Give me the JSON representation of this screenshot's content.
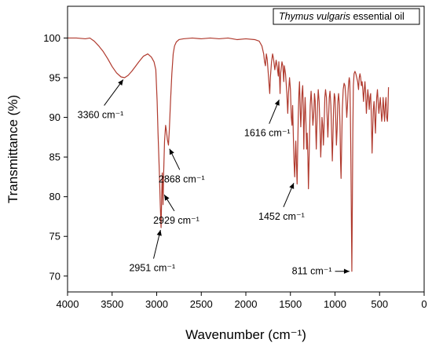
{
  "chart_data": {
    "type": "line",
    "xlabel": "Wavenumber (cm⁻¹)",
    "ylabel": "Transmittance (%)",
    "xlim": [
      4000,
      0
    ],
    "ylim": [
      68,
      104
    ],
    "xticks": [
      4000,
      3500,
      3000,
      2500,
      2000,
      1500,
      1000,
      500,
      0
    ],
    "yticks": [
      70,
      75,
      80,
      85,
      90,
      95,
      100
    ],
    "grid": false,
    "legend_position": "top-right",
    "series": [
      {
        "name": "Thymus vulgaris essential oil",
        "color": "#b03a2e",
        "points": [
          [
            4000,
            100.0
          ],
          [
            3900,
            100.0
          ],
          [
            3800,
            99.9
          ],
          [
            3750,
            100.0
          ],
          [
            3700,
            99.6
          ],
          [
            3650,
            99.0
          ],
          [
            3600,
            98.3
          ],
          [
            3550,
            97.4
          ],
          [
            3500,
            96.4
          ],
          [
            3450,
            95.6
          ],
          [
            3400,
            95.1
          ],
          [
            3360,
            95.0
          ],
          [
            3320,
            95.3
          ],
          [
            3280,
            95.8
          ],
          [
            3240,
            96.4
          ],
          [
            3200,
            97.0
          ],
          [
            3150,
            97.7
          ],
          [
            3100,
            98.0
          ],
          [
            3060,
            97.6
          ],
          [
            3030,
            97.0
          ],
          [
            3010,
            96.0
          ],
          [
            2995,
            92.0
          ],
          [
            2985,
            88.0
          ],
          [
            2970,
            83.0
          ],
          [
            2960,
            79.0
          ],
          [
            2951,
            76.1
          ],
          [
            2944,
            80.0
          ],
          [
            2938,
            83.0
          ],
          [
            2933,
            81.0
          ],
          [
            2929,
            79.0
          ],
          [
            2922,
            83.0
          ],
          [
            2912,
            87.0
          ],
          [
            2900,
            89.0
          ],
          [
            2890,
            88.2
          ],
          [
            2880,
            87.2
          ],
          [
            2868,
            86.5
          ],
          [
            2858,
            88.5
          ],
          [
            2845,
            92.0
          ],
          [
            2830,
            95.5
          ],
          [
            2815,
            98.0
          ],
          [
            2800,
            99.0
          ],
          [
            2780,
            99.5
          ],
          [
            2750,
            99.8
          ],
          [
            2700,
            99.9
          ],
          [
            2600,
            100.0
          ],
          [
            2500,
            99.9
          ],
          [
            2400,
            100.0
          ],
          [
            2300,
            99.9
          ],
          [
            2200,
            100.0
          ],
          [
            2100,
            99.8
          ],
          [
            2000,
            99.9
          ],
          [
            1900,
            99.8
          ],
          [
            1850,
            99.6
          ],
          [
            1820,
            99.0
          ],
          [
            1800,
            98.0
          ],
          [
            1790,
            97.0
          ],
          [
            1780,
            96.5
          ],
          [
            1770,
            98.0
          ],
          [
            1760,
            97.3
          ],
          [
            1745,
            95.0
          ],
          [
            1732,
            93.0
          ],
          [
            1725,
            95.0
          ],
          [
            1712,
            97.0
          ],
          [
            1700,
            98.0
          ],
          [
            1690,
            97.4
          ],
          [
            1675,
            96.0
          ],
          [
            1660,
            97.2
          ],
          [
            1648,
            96.3
          ],
          [
            1636,
            95.2
          ],
          [
            1630,
            97.0
          ],
          [
            1622,
            95.0
          ],
          [
            1616,
            93.0
          ],
          [
            1610,
            95.5
          ],
          [
            1595,
            97.0
          ],
          [
            1585,
            96.5
          ],
          [
            1575,
            94.5
          ],
          [
            1568,
            96.5
          ],
          [
            1555,
            95.5
          ],
          [
            1540,
            93.0
          ],
          [
            1530,
            90.5
          ],
          [
            1522,
            93.0
          ],
          [
            1510,
            95.0
          ],
          [
            1500,
            93.5
          ],
          [
            1490,
            90.0
          ],
          [
            1482,
            89.0
          ],
          [
            1475,
            91.5
          ],
          [
            1468,
            88.0
          ],
          [
            1460,
            84.5
          ],
          [
            1452,
            82.5
          ],
          [
            1447,
            84.5
          ],
          [
            1440,
            87.0
          ],
          [
            1432,
            84.0
          ],
          [
            1425,
            81.6
          ],
          [
            1420,
            85.0
          ],
          [
            1412,
            90.0
          ],
          [
            1405,
            93.0
          ],
          [
            1398,
            94.5
          ],
          [
            1390,
            91.0
          ],
          [
            1384,
            88.8
          ],
          [
            1378,
            90.5
          ],
          [
            1370,
            93.0
          ],
          [
            1362,
            94.0
          ],
          [
            1355,
            91.0
          ],
          [
            1350,
            86.0
          ],
          [
            1345,
            89.0
          ],
          [
            1335,
            92.5
          ],
          [
            1325,
            89.0
          ],
          [
            1318,
            86.0
          ],
          [
            1312,
            88.0
          ],
          [
            1304,
            85.0
          ],
          [
            1298,
            81.0
          ],
          [
            1292,
            84.0
          ],
          [
            1285,
            88.0
          ],
          [
            1278,
            91.5
          ],
          [
            1268,
            93.3
          ],
          [
            1256,
            91.0
          ],
          [
            1248,
            89.0
          ],
          [
            1238,
            90.5
          ],
          [
            1230,
            93.0
          ],
          [
            1222,
            92.0
          ],
          [
            1216,
            88.5
          ],
          [
            1210,
            86.0
          ],
          [
            1204,
            88.5
          ],
          [
            1196,
            91.5
          ],
          [
            1188,
            93.5
          ],
          [
            1178,
            92.0
          ],
          [
            1168,
            88.5
          ],
          [
            1160,
            85.0
          ],
          [
            1152,
            87.5
          ],
          [
            1146,
            90.0
          ],
          [
            1138,
            89.0
          ],
          [
            1130,
            86.5
          ],
          [
            1122,
            89.0
          ],
          [
            1114,
            92.5
          ],
          [
            1106,
            93.5
          ],
          [
            1096,
            92.5
          ],
          [
            1088,
            90.0
          ],
          [
            1080,
            87.5
          ],
          [
            1072,
            90.0
          ],
          [
            1064,
            92.5
          ],
          [
            1056,
            93.3
          ],
          [
            1046,
            91.5
          ],
          [
            1038,
            88.0
          ],
          [
            1030,
            84.5
          ],
          [
            1024,
            87.0
          ],
          [
            1016,
            91.0
          ],
          [
            1008,
            93.0
          ],
          [
            1000,
            92.5
          ],
          [
            992,
            90.0
          ],
          [
            984,
            86.5
          ],
          [
            976,
            88.5
          ],
          [
            968,
            92.0
          ],
          [
            960,
            93.0
          ],
          [
            950,
            91.5
          ],
          [
            944,
            89.0
          ],
          [
            938,
            84.5
          ],
          [
            932,
            82.3
          ],
          [
            926,
            86.0
          ],
          [
            918,
            91.0
          ],
          [
            908,
            93.5
          ],
          [
            898,
            94.3
          ],
          [
            888,
            94.0
          ],
          [
            878,
            92.5
          ],
          [
            868,
            90.0
          ],
          [
            860,
            91.5
          ],
          [
            852,
            93.5
          ],
          [
            846,
            94.5
          ],
          [
            840,
            95.0
          ],
          [
            834,
            94.5
          ],
          [
            828,
            91.0
          ],
          [
            822,
            85.0
          ],
          [
            816,
            77.0
          ],
          [
            811,
            70.6
          ],
          [
            806,
            78.0
          ],
          [
            800,
            88.0
          ],
          [
            794,
            94.0
          ],
          [
            786,
            95.5
          ],
          [
            776,
            95.8
          ],
          [
            766,
            95.5
          ],
          [
            756,
            95.0
          ],
          [
            746,
            94.5
          ],
          [
            736,
            93.5
          ],
          [
            728,
            95.0
          ],
          [
            720,
            95.5
          ],
          [
            712,
            95.0
          ],
          [
            704,
            94.0
          ],
          [
            696,
            94.5
          ],
          [
            688,
            93.5
          ],
          [
            680,
            92.0
          ],
          [
            672,
            93.5
          ],
          [
            664,
            94.5
          ],
          [
            656,
            93.0
          ],
          [
            648,
            90.5
          ],
          [
            640,
            92.0
          ],
          [
            632,
            93.5
          ],
          [
            624,
            92.5
          ],
          [
            616,
            91.0
          ],
          [
            608,
            92.5
          ],
          [
            600,
            93.0
          ],
          [
            592,
            90.0
          ],
          [
            584,
            85.5
          ],
          [
            578,
            88.0
          ],
          [
            570,
            91.0
          ],
          [
            562,
            92.0
          ],
          [
            554,
            90.0
          ],
          [
            546,
            88.0
          ],
          [
            540,
            90.5
          ],
          [
            532,
            92.5
          ],
          [
            524,
            93.5
          ],
          [
            516,
            92.0
          ],
          [
            508,
            90.5
          ],
          [
            500,
            91.5
          ],
          [
            492,
            92.5
          ],
          [
            484,
            91.0
          ],
          [
            476,
            89.5
          ],
          [
            468,
            90.5
          ],
          [
            460,
            92.5
          ],
          [
            452,
            91.0
          ],
          [
            444,
            89.5
          ],
          [
            436,
            91.5
          ],
          [
            428,
            92.5
          ],
          [
            420,
            90.0
          ],
          [
            412,
            89.5
          ],
          [
            406,
            91.0
          ],
          [
            400,
            93.8
          ]
        ]
      }
    ],
    "annotations": [
      {
        "text": "3360 cm⁻¹",
        "target_x": 3360,
        "target_y": 95.0,
        "label_x": 3630,
        "label_y": 91.3
      },
      {
        "text": "2951 cm⁻¹",
        "target_x": 2951,
        "target_y": 76.1,
        "label_x": 3050,
        "label_y": 72.0
      },
      {
        "text": "2929 cm⁻¹",
        "target_x": 2929,
        "target_y": 80.5,
        "label_x": 2780,
        "label_y": 78.0
      },
      {
        "text": "2868 cm⁻¹",
        "target_x": 2868,
        "target_y": 86.3,
        "label_x": 2720,
        "label_y": 83.2
      },
      {
        "text": "1616 cm⁻¹",
        "target_x": 1616,
        "target_y": 92.5,
        "label_x": 1760,
        "label_y": 89.0
      },
      {
        "text": "1452 cm⁻¹",
        "target_x": 1452,
        "target_y": 82.0,
        "label_x": 1600,
        "label_y": 78.5
      },
      {
        "text": "811 cm⁻¹",
        "target_x": 811,
        "target_y": 70.6,
        "label_x": 1000,
        "label_y": 70.6
      }
    ]
  }
}
